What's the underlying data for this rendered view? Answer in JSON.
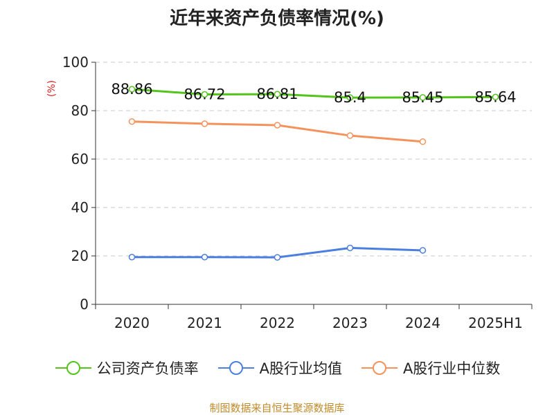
{
  "title": "近年来资产负债率情况(%)",
  "source": "制图数据来自恒生聚源数据库",
  "chart_data": {
    "type": "line",
    "title": "近年来资产负债率情况(%)",
    "xlabel": "",
    "ylabel": "(%)",
    "categories": [
      "2020",
      "2021",
      "2022",
      "2023",
      "2024",
      "2025H1"
    ],
    "ylim": [
      0,
      100
    ],
    "yticks": [
      0,
      20,
      40,
      60,
      80,
      100
    ],
    "grid": true,
    "legend_position": "bottom",
    "series": [
      {
        "name": "公司资产负债率",
        "color": "#52c41a",
        "values": [
          88.86,
          86.72,
          86.81,
          85.4,
          85.45,
          85.64
        ],
        "labels": [
          "88.86",
          "86.72",
          "86.81",
          "85.4",
          "85.45",
          "85.64"
        ]
      },
      {
        "name": "A股行业均值",
        "color": "#4a7ee0",
        "values": [
          19.5,
          19.5,
          19.4,
          23.3,
          22.3,
          null
        ]
      },
      {
        "name": "A股行业中位数",
        "color": "#f5925b",
        "values": [
          75.5,
          74.6,
          74.0,
          69.7,
          67.2,
          null
        ]
      }
    ]
  }
}
